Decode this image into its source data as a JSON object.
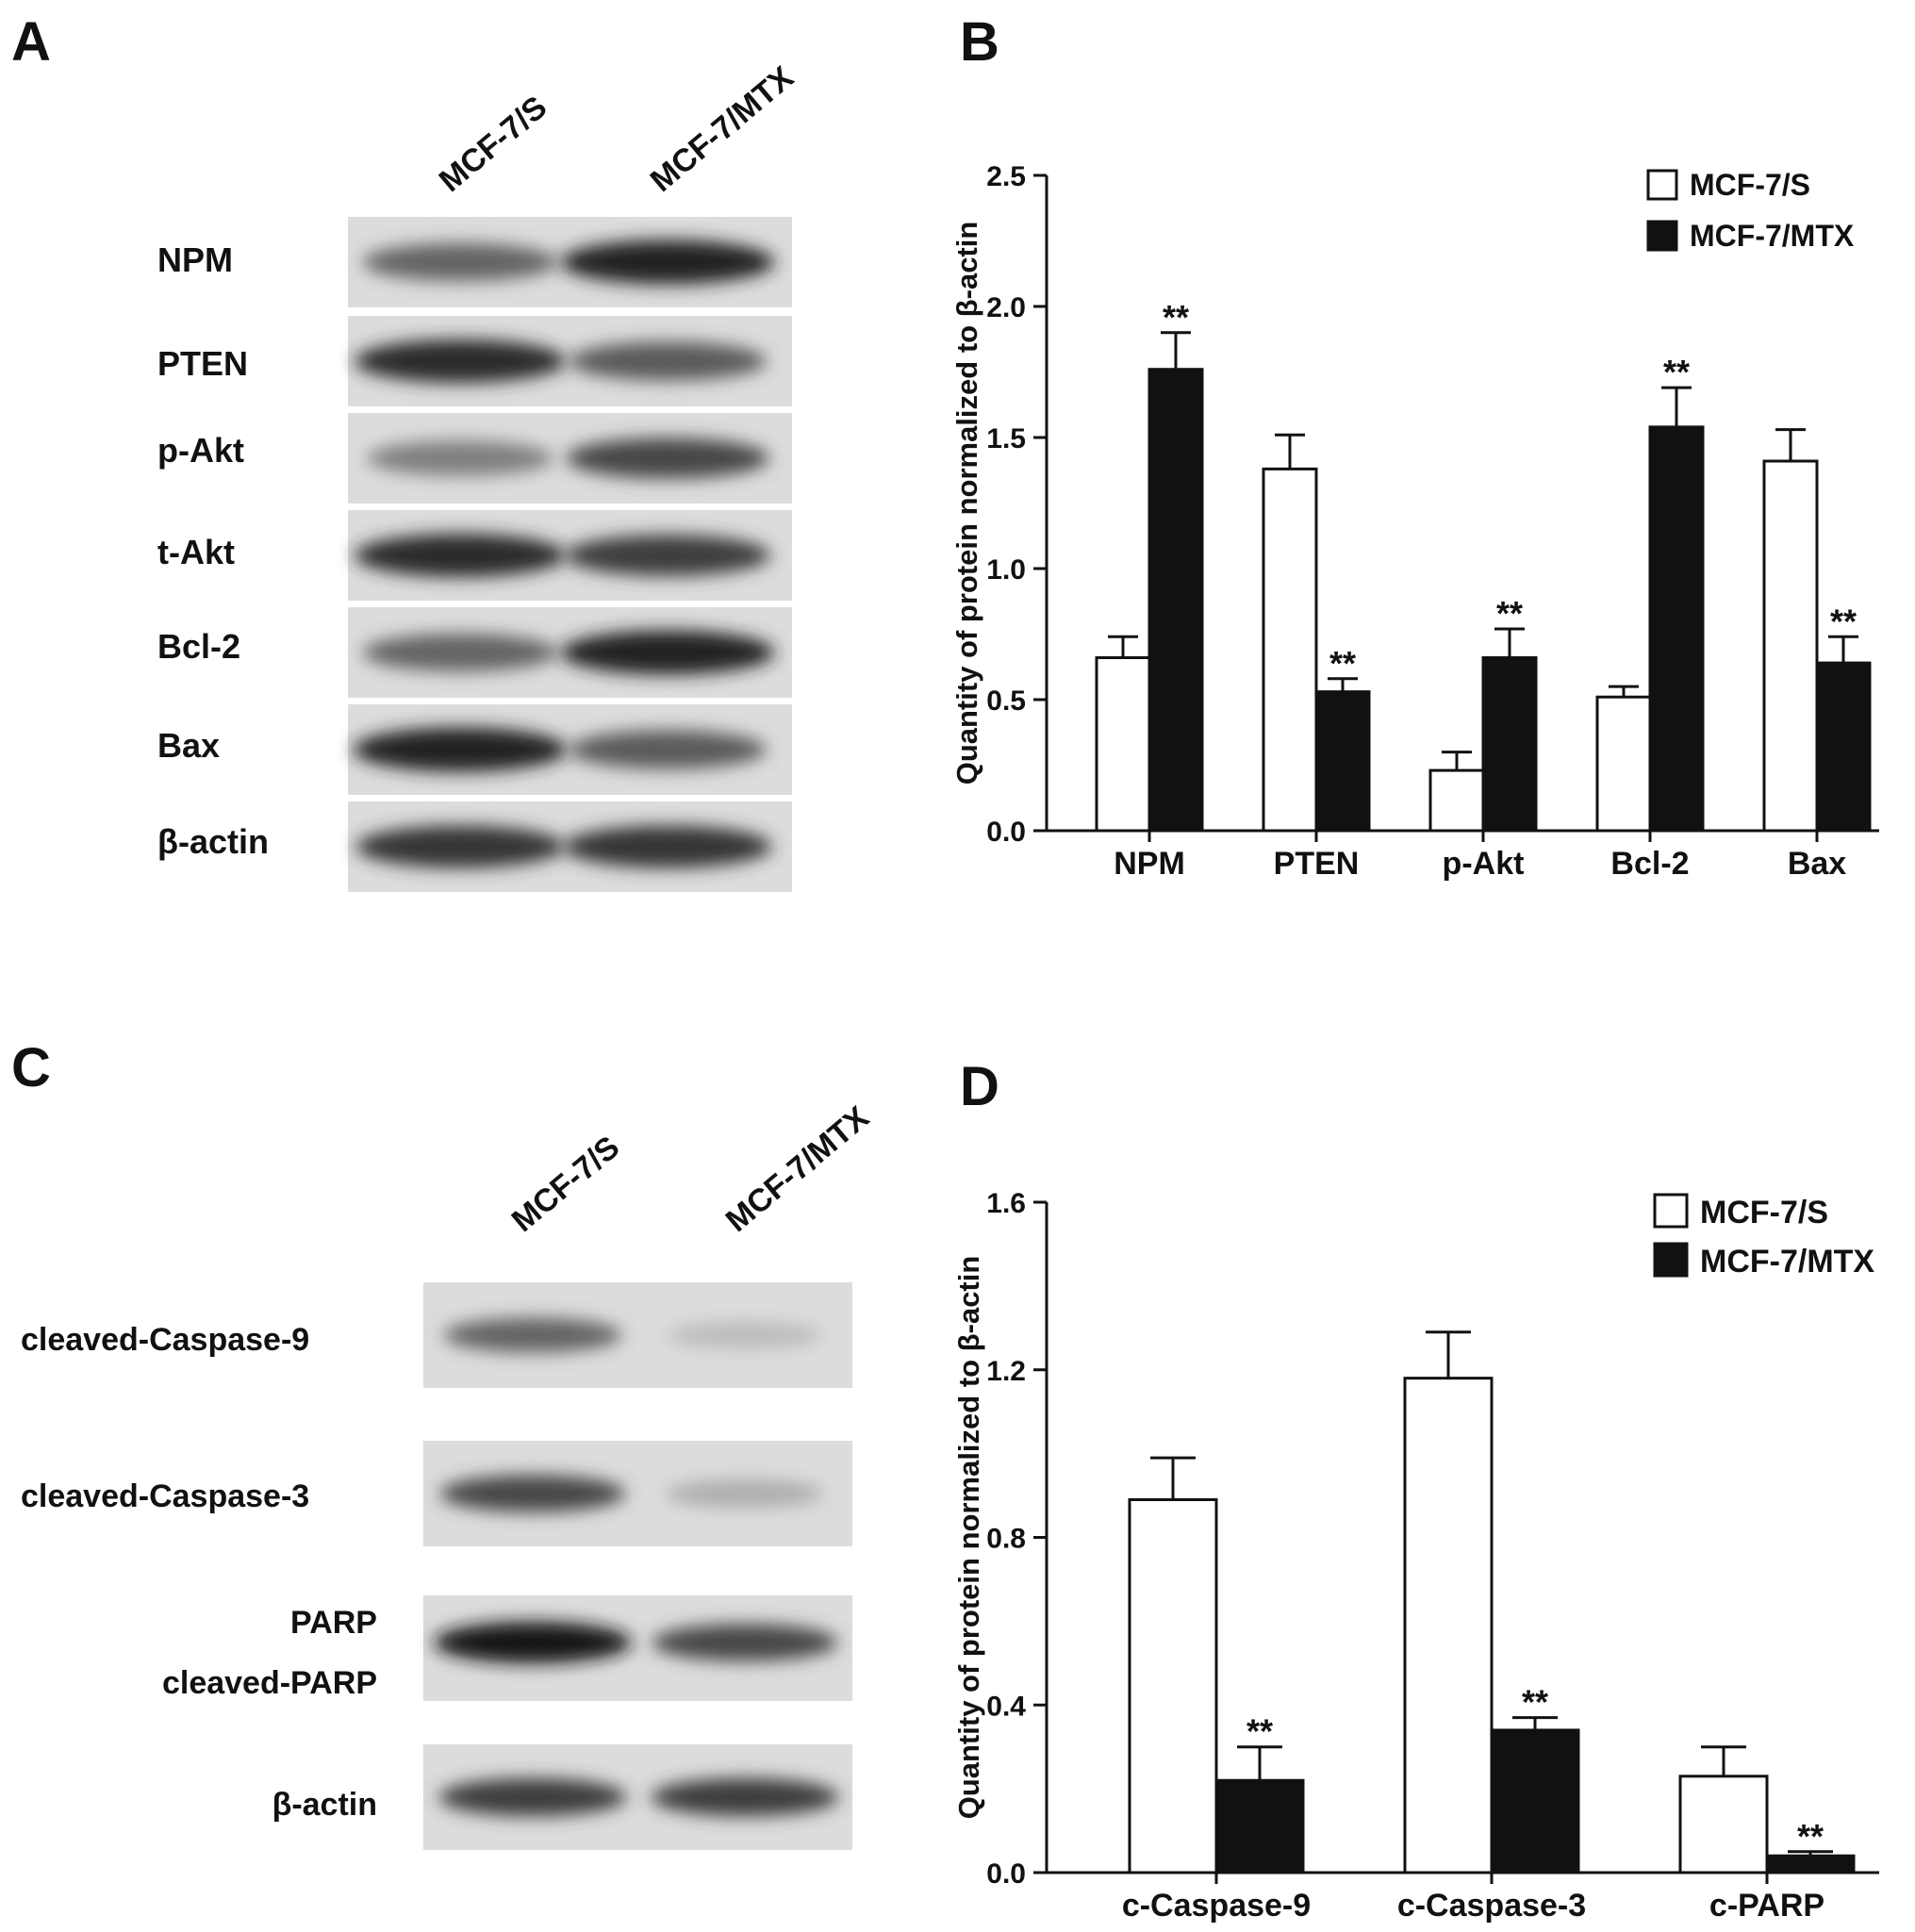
{
  "panels": {
    "A": {
      "letter": "A",
      "lanes": [
        "MCF-7/S",
        "MCF-7/MTX"
      ],
      "rows": [
        {
          "label": "NPM",
          "band_intensity": [
            0.6,
            0.95
          ]
        },
        {
          "label": "PTEN",
          "band_intensity": [
            0.9,
            0.65
          ]
        },
        {
          "label": "p-Akt",
          "band_intensity": [
            0.45,
            0.75
          ]
        },
        {
          "label": "t-Akt",
          "band_intensity": [
            0.9,
            0.8
          ]
        },
        {
          "label": "Bcl-2",
          "band_intensity": [
            0.6,
            0.95
          ]
        },
        {
          "label": "Bax",
          "band_intensity": [
            0.95,
            0.65
          ]
        },
        {
          "label": "β-actin",
          "band_intensity": [
            0.85,
            0.85
          ]
        }
      ]
    },
    "C": {
      "letter": "C",
      "lanes": [
        "MCF-7/S",
        "MCF-7/MTX"
      ],
      "rows": [
        {
          "label": "cleaved-Caspase-9",
          "band_intensity": [
            0.6,
            0.12
          ]
        },
        {
          "label": "cleaved-Caspase-3",
          "band_intensity": [
            0.75,
            0.2
          ]
        },
        {
          "label": "PARP",
          "label2": "cleaved-PARP",
          "band_intensity": [
            1.0,
            0.75
          ]
        },
        {
          "label": "β-actin",
          "band_intensity": [
            0.8,
            0.8
          ]
        }
      ]
    },
    "B": {
      "letter": "B"
    },
    "D": {
      "letter": "D"
    }
  },
  "chart_data": [
    {
      "panel": "B",
      "type": "bar",
      "categories": [
        "NPM",
        "PTEN",
        "p-Akt",
        "Bcl-2",
        "Bax"
      ],
      "series": [
        {
          "name": "MCF-7/S",
          "color": "#ffffff",
          "values": [
            0.66,
            1.38,
            0.23,
            0.51,
            1.41
          ],
          "errors": [
            0.08,
            0.13,
            0.07,
            0.04,
            0.12
          ],
          "sig": [
            "",
            "",
            "",
            "",
            ""
          ]
        },
        {
          "name": "MCF-7/MTX",
          "color": "#111111",
          "values": [
            1.76,
            0.53,
            0.66,
            1.54,
            0.64
          ],
          "errors": [
            0.14,
            0.05,
            0.11,
            0.15,
            0.1
          ],
          "sig": [
            "**",
            "**",
            "**",
            "**",
            "**"
          ]
        }
      ],
      "ylabel": "Quantity of protein normalized to β-actin",
      "ylim": [
        0,
        2.5
      ],
      "yticks": [
        "0.0",
        "0.5",
        "1.0",
        "1.5",
        "2.0",
        "2.5"
      ],
      "legend": "top-right",
      "grid": false
    },
    {
      "panel": "D",
      "type": "bar",
      "categories": [
        "c-Caspase-9",
        "c-Caspase-3",
        "c-PARP"
      ],
      "series": [
        {
          "name": "MCF-7/S",
          "color": "#ffffff",
          "values": [
            0.89,
            1.18,
            0.23
          ],
          "errors": [
            0.1,
            0.11,
            0.07
          ],
          "sig": [
            "",
            "",
            ""
          ]
        },
        {
          "name": "MCF-7/MTX",
          "color": "#111111",
          "values": [
            0.22,
            0.34,
            0.04
          ],
          "errors": [
            0.08,
            0.03,
            0.01
          ],
          "sig": [
            "**",
            "**",
            "**"
          ]
        }
      ],
      "ylabel": "Quantity of protein normalized to β-actin",
      "ylim": [
        0,
        1.6
      ],
      "yticks": [
        "0.0",
        "0.4",
        "0.8",
        "1.2",
        "1.6"
      ],
      "legend": "top-right",
      "grid": false
    }
  ]
}
